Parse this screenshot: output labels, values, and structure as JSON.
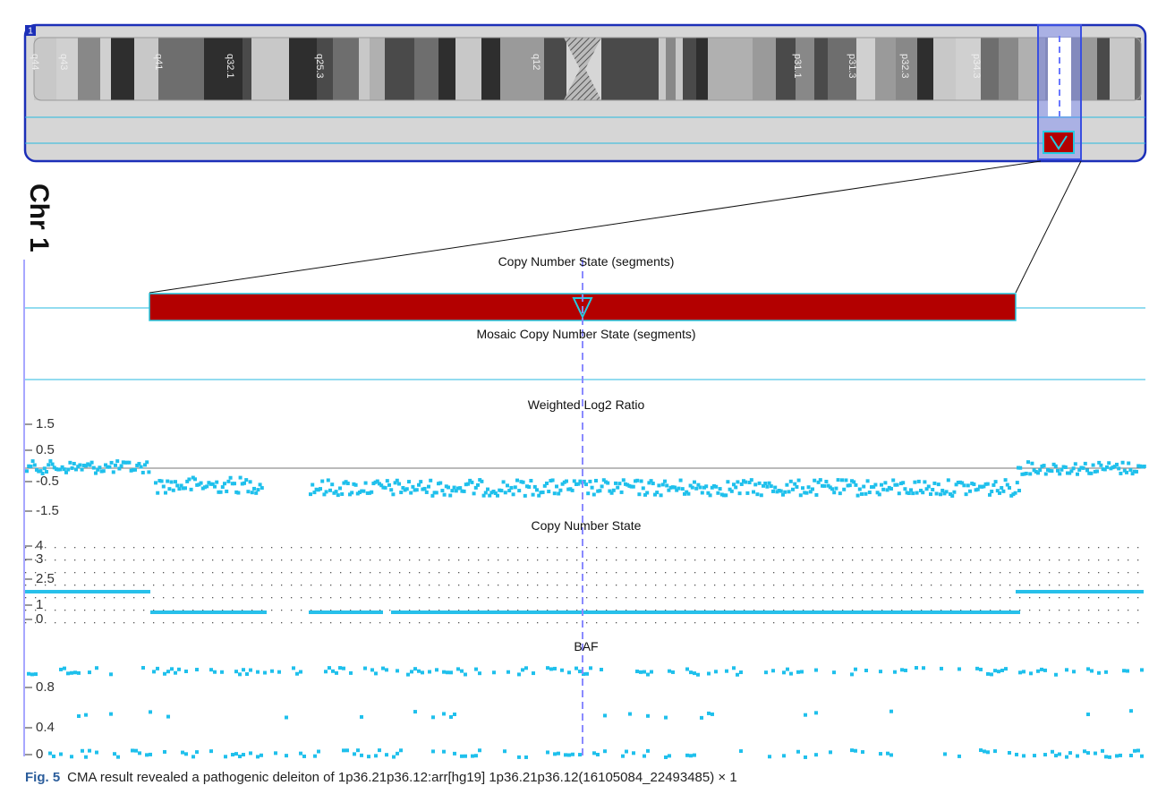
{
  "chromosome_label": "1",
  "side_label": "Chr 1",
  "ideogram": {
    "bands": [
      "q44",
      "q43",
      "q41",
      "q32.1",
      "q25.3",
      "q12",
      "p31.1",
      "p31.3",
      "p32.3",
      "p34.3"
    ]
  },
  "tracks": [
    {
      "title": "Copy Number State (segments)"
    },
    {
      "title": "Mosaic Copy Number State (segments)"
    },
    {
      "title": "Weighted Log2 Ratio",
      "ticks": [
        1.5,
        0.5,
        -0.5,
        -1.5
      ]
    },
    {
      "title": "Copy Number State",
      "ticks": [
        4,
        3,
        2.5,
        1,
        0
      ]
    },
    {
      "title": "BAF",
      "ticks": [
        0.8,
        0.4,
        0
      ]
    }
  ],
  "caption": {
    "label": "Fig. 5",
    "text": "CMA result revealed a pathogenic deleiton of 1p36.21p36.12:arr[hg19] 1p36.21p36.12(16105084_22493485) × 1"
  }
}
